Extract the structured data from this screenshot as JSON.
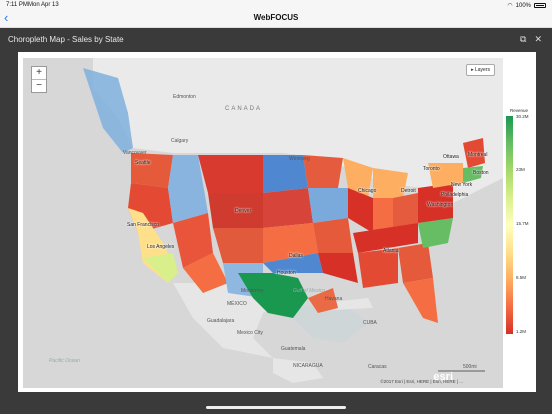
{
  "status_bar": {
    "time": "7:11 PM",
    "date": "Mon Apr 13",
    "battery": "100%"
  },
  "nav": {
    "back_icon": "chevron-left-icon",
    "title": "WebFOCUS"
  },
  "modal": {
    "title": "Choropleth Map - Sales by State",
    "expand_icon": "external-link-icon",
    "close_icon": "close-icon"
  },
  "map": {
    "zoom_in": "+",
    "zoom_out": "−",
    "layers_label": "Layers",
    "labels": {
      "canada": "CANADA",
      "edmonton": "Edmonton",
      "calgary": "Calgary",
      "vancouver": "Vancouver",
      "seattle": "Seattle",
      "winnipeg": "Winnipeg",
      "ottawa": "Ottawa",
      "toronto": "Toronto",
      "montreal": "Montreal",
      "chicago": "Chicago",
      "detroit": "Detroit",
      "boston": "Boston",
      "new_york": "New York",
      "philadelphia": "Philadelphia",
      "washington": "Washington",
      "san_francisco": "San Francisco",
      "los_angeles": "Los Angeles",
      "denver": "Denver",
      "dallas": "Dallas",
      "houston": "Houston",
      "atlanta": "Atlanta",
      "monterrey": "Monterrey",
      "mexico": "MÉXICO",
      "guadalajara": "Guadalajara",
      "mexico_city": "Mexico City",
      "gulf": "Gulf of Mexico",
      "havana": "Havana",
      "cuba": "CUBA",
      "guatemala": "Guatemala",
      "nicaragua": "NICARAGUA",
      "caracas": "Caracas",
      "pacific": "Pacific Ocean"
    },
    "attribution": "©2017 Esri | Esri, HERE | Esri, HERE | ...",
    "esri_logo": "esri",
    "scale_label": "500mi"
  },
  "legend": {
    "title": "Revenue",
    "ticks": [
      "30.2M",
      "23M",
      "15.7M",
      "8.5M",
      "1.2M"
    ],
    "colors": [
      "#1a9850",
      "#66bd63",
      "#a6d96a",
      "#d9ef8b",
      "#ffffbf",
      "#fee08b",
      "#fdae61",
      "#f46d43",
      "#d73027"
    ]
  }
}
